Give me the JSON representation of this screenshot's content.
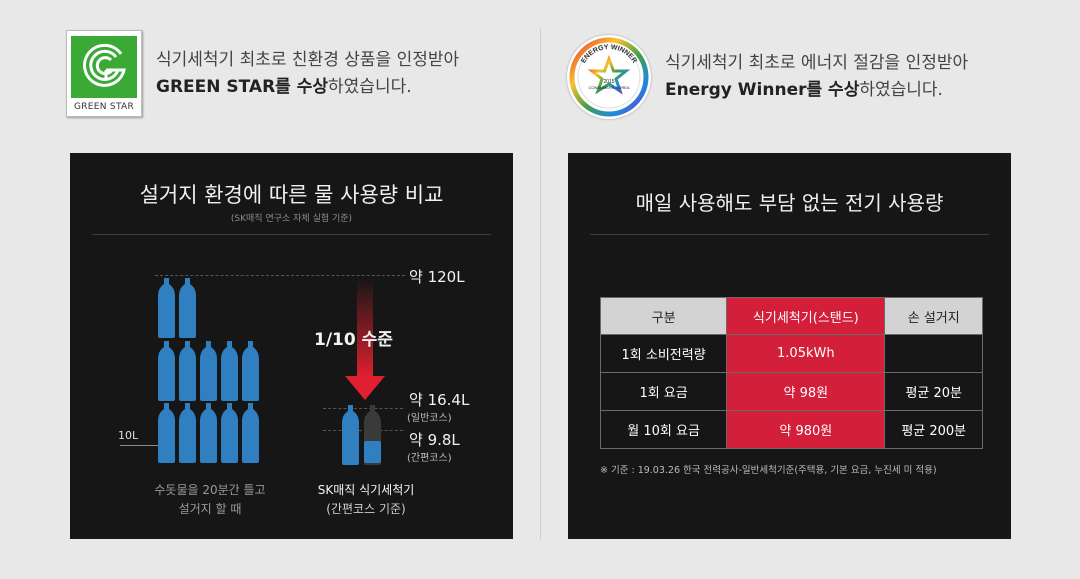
{
  "awards": [
    {
      "logo": "green-star-logo",
      "logo_caption": "GREEN STAR",
      "line1": "식기세척기 최초로 친환경 상품을 인정받아",
      "line2_bold": "GREEN STAR를 수상",
      "line2_rest": "하였습니다."
    },
    {
      "logo": "energy-winner-logo",
      "logo_caption": "ENERGY WINNER",
      "logo_year": "2015",
      "logo_org": "CONSUMERS KOREA",
      "line1": "식기세척기 최초로 에너지 절감을 인정받아",
      "line2_bold": "Energy Winner를 수상",
      "line2_rest": "하였습니다."
    }
  ],
  "water_panel": {
    "title": "설거지 환경에 따른 물 사용량 비교",
    "subtitle": "(SK매직 연구소 자체 실험 기준)",
    "level_120": "약 120L",
    "level_16": "약 16.4L",
    "level_16_sub": "(일반코스)",
    "level_9": "약 9.8L",
    "level_9_sub": "(간편코스)",
    "ratio_label": "1/10 수준",
    "ten_l": "10L",
    "left_caption_1": "수돗물을 20분간 틀고",
    "left_caption_2": "설거지 할 때",
    "right_caption_1": "SK매직 식기세척기",
    "right_caption_2": "(간편코스 기준)",
    "colors": {
      "bottle": "#2f7fc1",
      "arrow": "#e02030"
    }
  },
  "power_panel": {
    "title": "매일 사용해도 부담 없는 전기 사용량",
    "headers": [
      "구분",
      "식기세척기(스탠드)",
      "손 설거지"
    ],
    "rows": [
      [
        "1회 소비전력량",
        "1.05kWh",
        ""
      ],
      [
        "1회 요금",
        "약 98원",
        "평균 20분"
      ],
      [
        "월 10회 요금",
        "약 980원",
        "평균 200분"
      ]
    ],
    "note": "※ 기준 : 19.03.26 한국 전력공사-일반세척기준(주택용, 기본 요금, 누진세 미 적용)",
    "colors": {
      "highlight": "#d31f3a",
      "header": "#d3d3d3"
    }
  }
}
